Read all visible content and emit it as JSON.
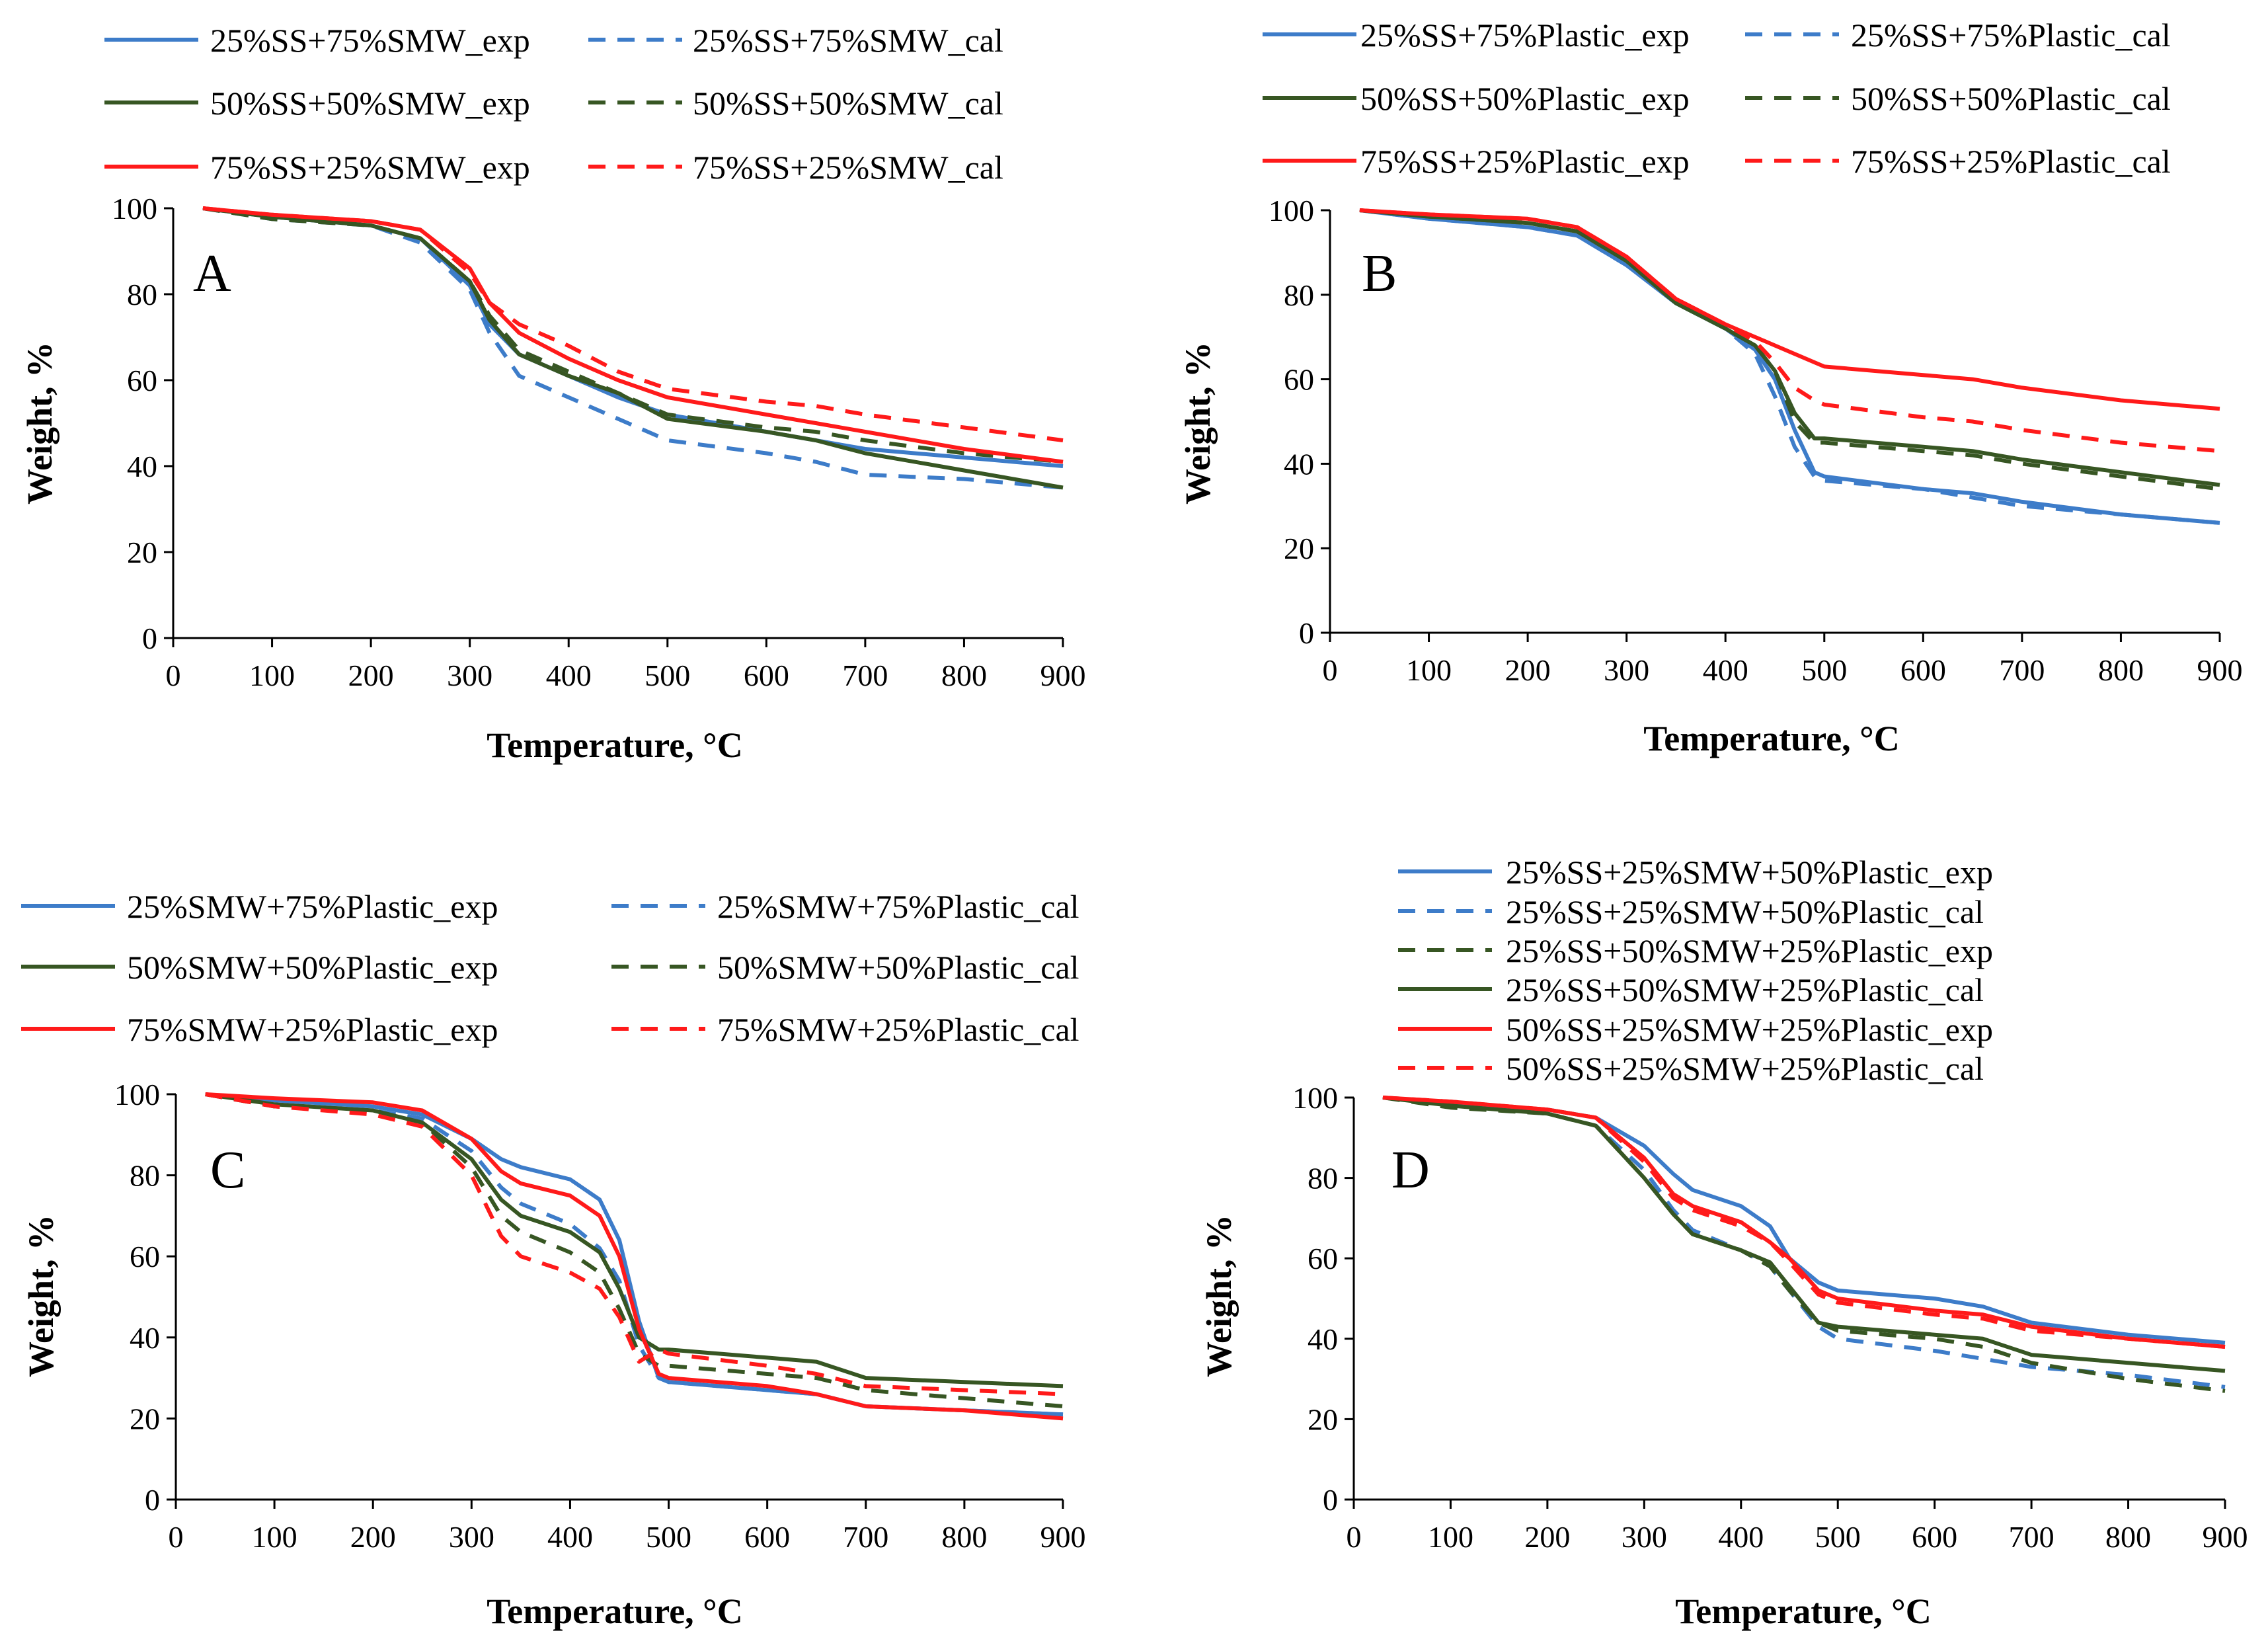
{
  "colors": {
    "blue": "#3d7cc9",
    "green": "#375623",
    "red": "#ff1a1a"
  },
  "chart_data": [
    {
      "type": "line",
      "panel": "A",
      "xlabel": "Temperature, °C",
      "ylabel": "Weight, %",
      "xlim": [
        0,
        900
      ],
      "ylim": [
        0,
        100
      ],
      "xticks": [
        0,
        100,
        200,
        300,
        400,
        500,
        600,
        700,
        800,
        900
      ],
      "yticks": [
        0,
        20,
        40,
        60,
        80,
        100
      ],
      "series": [
        {
          "name": "25%SS+75%SMW_exp",
          "color": "blue",
          "dash": false,
          "x": [
            30,
            100,
            200,
            250,
            300,
            320,
            350,
            400,
            450,
            500,
            600,
            650,
            700,
            800,
            900
          ],
          "y": [
            100,
            98,
            96,
            93,
            82,
            73,
            66,
            61,
            56,
            52,
            48,
            46,
            44,
            42,
            40
          ]
        },
        {
          "name": "25%SS+75%SMW_cal",
          "color": "blue",
          "dash": true,
          "x": [
            30,
            100,
            200,
            250,
            300,
            320,
            350,
            400,
            450,
            500,
            600,
            650,
            700,
            800,
            900
          ],
          "y": [
            100,
            97.5,
            96,
            92,
            81,
            71,
            61,
            56,
            51,
            46,
            43,
            41,
            38,
            37,
            35
          ]
        },
        {
          "name": "50%SS+50%SMW_exp",
          "color": "green",
          "dash": false,
          "x": [
            30,
            100,
            200,
            250,
            300,
            320,
            350,
            400,
            450,
            500,
            600,
            650,
            700,
            800,
            900
          ],
          "y": [
            100,
            98,
            96,
            93,
            83,
            74,
            66,
            61,
            57,
            51,
            48,
            46,
            43,
            39,
            35
          ]
        },
        {
          "name": "50%SS+50%SMW_cal",
          "color": "green",
          "dash": true,
          "x": [
            30,
            100,
            200,
            250,
            300,
            320,
            350,
            400,
            450,
            500,
            600,
            650,
            700,
            800,
            900
          ],
          "y": [
            100,
            97.5,
            96,
            93,
            83,
            75,
            67,
            62,
            57,
            52,
            49,
            48,
            46,
            43,
            41
          ]
        },
        {
          "name": "75%SS+25%SMW_exp",
          "color": "red",
          "dash": false,
          "x": [
            30,
            100,
            200,
            250,
            300,
            320,
            350,
            400,
            450,
            500,
            600,
            650,
            700,
            800,
            900
          ],
          "y": [
            100,
            98.5,
            97,
            95,
            86,
            78,
            71,
            65,
            60,
            56,
            52,
            50,
            48,
            44,
            41
          ]
        },
        {
          "name": "75%SS+25%SMW_cal",
          "color": "red",
          "dash": true,
          "x": [
            30,
            100,
            200,
            250,
            300,
            320,
            350,
            400,
            450,
            500,
            600,
            650,
            700,
            800,
            900
          ],
          "y": [
            100,
            98.5,
            97,
            95,
            85,
            78,
            73,
            68,
            62,
            58,
            55,
            54,
            52,
            49,
            46
          ]
        }
      ]
    },
    {
      "type": "line",
      "panel": "B",
      "xlabel": "Temperature, °C",
      "ylabel": "Weight, %",
      "xlim": [
        0,
        900
      ],
      "ylim": [
        0,
        100
      ],
      "xticks": [
        0,
        100,
        200,
        300,
        400,
        500,
        600,
        700,
        800,
        900
      ],
      "yticks": [
        0,
        20,
        40,
        60,
        80,
        100
      ],
      "series": [
        {
          "name": "25%SS+75%Plastic_exp",
          "color": "blue",
          "dash": false,
          "x": [
            30,
            100,
            200,
            250,
            300,
            350,
            400,
            430,
            450,
            470,
            490,
            500,
            600,
            650,
            700,
            800,
            900
          ],
          "y": [
            100,
            98,
            96,
            94,
            87,
            78,
            72,
            67,
            60,
            48,
            38,
            37,
            34,
            33,
            31,
            28,
            26
          ]
        },
        {
          "name": "25%SS+75%Plastic_cal",
          "color": "blue",
          "dash": true,
          "x": [
            30,
            100,
            200,
            250,
            300,
            350,
            400,
            430,
            450,
            470,
            490,
            500,
            600,
            650,
            700,
            800,
            900
          ],
          "y": [
            100,
            98,
            96,
            94,
            87,
            78,
            72,
            66,
            56,
            44,
            37,
            36,
            34,
            32,
            30,
            28,
            26
          ]
        },
        {
          "name": "50%SS+50%Plastic_exp",
          "color": "green",
          "dash": false,
          "x": [
            30,
            100,
            200,
            250,
            300,
            350,
            400,
            430,
            450,
            470,
            490,
            500,
            600,
            650,
            700,
            800,
            900
          ],
          "y": [
            100,
            98.5,
            97,
            95,
            88,
            78,
            72,
            68,
            62,
            52,
            46,
            46,
            44,
            43,
            41,
            38,
            35
          ]
        },
        {
          "name": "50%SS+50%Plastic_cal",
          "color": "green",
          "dash": true,
          "x": [
            30,
            100,
            200,
            250,
            300,
            350,
            400,
            430,
            450,
            470,
            490,
            500,
            600,
            650,
            700,
            800,
            900
          ],
          "y": [
            100,
            98.5,
            97,
            95,
            88,
            78,
            72,
            68,
            62,
            50,
            45,
            45,
            43,
            42,
            40,
            37,
            34
          ]
        },
        {
          "name": "75%SS+25%Plastic_exp",
          "color": "red",
          "dash": false,
          "x": [
            30,
            100,
            200,
            250,
            300,
            350,
            400,
            430,
            450,
            470,
            490,
            500,
            600,
            650,
            700,
            800,
            900
          ],
          "y": [
            100,
            99,
            98,
            96,
            89,
            79,
            73,
            70,
            68,
            66,
            64,
            63,
            61,
            60,
            58,
            55,
            53
          ]
        },
        {
          "name": "75%SS+25%Plastic_cal",
          "color": "red",
          "dash": true,
          "x": [
            30,
            100,
            200,
            250,
            300,
            350,
            400,
            430,
            450,
            470,
            490,
            500,
            600,
            650,
            700,
            800,
            900
          ],
          "y": [
            100,
            99,
            98,
            96,
            89,
            79,
            73,
            69,
            64,
            58,
            55,
            54,
            51,
            50,
            48,
            45,
            43
          ]
        }
      ]
    },
    {
      "type": "line",
      "panel": "C",
      "xlabel": "Temperature, °C",
      "ylabel": "Weight, %",
      "xlim": [
        0,
        900
      ],
      "ylim": [
        0,
        100
      ],
      "xticks": [
        0,
        100,
        200,
        300,
        400,
        500,
        600,
        700,
        800,
        900
      ],
      "yticks": [
        0,
        20,
        40,
        60,
        80,
        100
      ],
      "series": [
        {
          "name": "25%SMW+75%Plastic_exp",
          "color": "blue",
          "dash": false,
          "x": [
            30,
            100,
            200,
            250,
            300,
            330,
            350,
            400,
            430,
            450,
            470,
            490,
            500,
            600,
            650,
            700,
            800,
            900
          ],
          "y": [
            100,
            98.5,
            97,
            95,
            89,
            84,
            82,
            79,
            74,
            64,
            44,
            30,
            29,
            27,
            26,
            23,
            22,
            21
          ]
        },
        {
          "name": "25%SMW+75%Plastic_cal",
          "color": "blue",
          "dash": true,
          "x": [
            30,
            100,
            200,
            250,
            300,
            330,
            350,
            400,
            430,
            450,
            470,
            490,
            500,
            600,
            650,
            700,
            800,
            900
          ],
          "y": [
            100,
            97,
            96,
            94,
            86,
            77,
            73,
            68,
            62,
            54,
            38,
            30,
            29,
            27,
            26,
            23,
            22,
            21
          ]
        },
        {
          "name": "50%SMW+50%Plastic_exp",
          "color": "green",
          "dash": false,
          "x": [
            30,
            100,
            200,
            250,
            300,
            330,
            350,
            400,
            430,
            450,
            470,
            490,
            500,
            600,
            650,
            700,
            800,
            900
          ],
          "y": [
            100,
            97.5,
            96,
            93,
            84,
            74,
            70,
            66,
            61,
            52,
            40,
            37,
            37,
            35,
            34,
            30,
            29,
            28
          ]
        },
        {
          "name": "50%SMW+50%Plastic_cal",
          "color": "green",
          "dash": true,
          "x": [
            30,
            100,
            200,
            250,
            300,
            330,
            350,
            400,
            430,
            450,
            470,
            490,
            500,
            600,
            650,
            700,
            800,
            900
          ],
          "y": [
            100,
            97,
            96,
            93,
            82,
            70,
            66,
            61,
            56,
            47,
            36,
            33,
            33,
            31,
            30,
            27,
            25,
            23
          ]
        },
        {
          "name": "75%SMW+25%Plastic_exp",
          "color": "red",
          "dash": false,
          "x": [
            30,
            100,
            200,
            250,
            300,
            330,
            350,
            400,
            430,
            450,
            470,
            490,
            500,
            600,
            650,
            700,
            800,
            900
          ],
          "y": [
            100,
            99,
            98,
            96,
            89,
            81,
            78,
            75,
            70,
            60,
            42,
            31,
            30,
            28,
            26,
            23,
            22,
            20
          ]
        },
        {
          "name": "75%SMW+25%Plastic_cal",
          "color": "red",
          "dash": true,
          "x": [
            30,
            100,
            200,
            250,
            300,
            330,
            350,
            400,
            430,
            450,
            470,
            490,
            500,
            600,
            650,
            700,
            800,
            900
          ],
          "y": [
            100,
            97,
            95,
            92,
            80,
            65,
            60,
            56,
            52,
            45,
            34,
            37,
            36,
            33,
            31,
            28,
            27,
            26
          ]
        }
      ]
    },
    {
      "type": "line",
      "panel": "D",
      "xlabel": "Temperature, °C",
      "ylabel": "Weight, %",
      "xlim": [
        0,
        900
      ],
      "ylim": [
        0,
        100
      ],
      "xticks": [
        0,
        100,
        200,
        300,
        400,
        500,
        600,
        700,
        800,
        900
      ],
      "yticks": [
        0,
        20,
        40,
        60,
        80,
        100
      ],
      "series": [
        {
          "name": "25%SS+25%SMW+50%Plastic_exp",
          "color": "blue",
          "dash": false,
          "x": [
            30,
            100,
            200,
            250,
            300,
            330,
            350,
            400,
            430,
            450,
            480,
            500,
            600,
            650,
            700,
            800,
            900
          ],
          "y": [
            100,
            98.5,
            97,
            95,
            88,
            81,
            77,
            73,
            68,
            60,
            54,
            52,
            50,
            48,
            44,
            41,
            39
          ]
        },
        {
          "name": "25%SS+25%SMW+50%Plastic_cal",
          "color": "blue",
          "dash": true,
          "x": [
            30,
            100,
            200,
            250,
            300,
            330,
            350,
            400,
            430,
            450,
            480,
            500,
            600,
            650,
            700,
            800,
            900
          ],
          "y": [
            100,
            98,
            96,
            93,
            82,
            72,
            67,
            62,
            58,
            52,
            43,
            40,
            37,
            35,
            33,
            31,
            28
          ]
        },
        {
          "name": "25%SS+50%SMW+25%Plastic_exp",
          "color": "green",
          "dash": true,
          "x": [
            30,
            100,
            200,
            250,
            300,
            330,
            350,
            400,
            430,
            450,
            480,
            500,
            600,
            650,
            700,
            800,
            900
          ],
          "y": [
            100,
            97.5,
            96,
            93,
            80,
            71,
            66,
            62,
            58,
            52,
            44,
            42,
            40,
            38,
            34,
            30,
            27
          ]
        },
        {
          "name": "25%SS+50%SMW+25%Plastic_cal",
          "color": "green",
          "dash": false,
          "x": [
            30,
            100,
            200,
            250,
            300,
            330,
            350,
            400,
            430,
            450,
            480,
            500,
            600,
            650,
            700,
            800,
            900
          ],
          "y": [
            100,
            98,
            96,
            93,
            80,
            71,
            66,
            62,
            59,
            53,
            44,
            43,
            41,
            40,
            36,
            34,
            32
          ]
        },
        {
          "name": "50%SS+25%SMW+25%Plastic_exp",
          "color": "red",
          "dash": false,
          "x": [
            30,
            100,
            200,
            250,
            300,
            330,
            350,
            400,
            430,
            450,
            480,
            500,
            600,
            650,
            700,
            800,
            900
          ],
          "y": [
            100,
            99,
            97,
            95,
            85,
            76,
            73,
            69,
            64,
            60,
            52,
            50,
            47,
            46,
            43,
            40,
            38
          ]
        },
        {
          "name": "50%SS+25%SMW+25%Plastic_cal",
          "color": "red",
          "dash": true,
          "x": [
            30,
            100,
            200,
            250,
            300,
            330,
            350,
            400,
            430,
            450,
            480,
            500,
            600,
            650,
            700,
            800,
            900
          ],
          "y": [
            100,
            99,
            97,
            95,
            84,
            75,
            72,
            68,
            64,
            59,
            51,
            49,
            46,
            45,
            42,
            40,
            38
          ]
        }
      ]
    }
  ]
}
